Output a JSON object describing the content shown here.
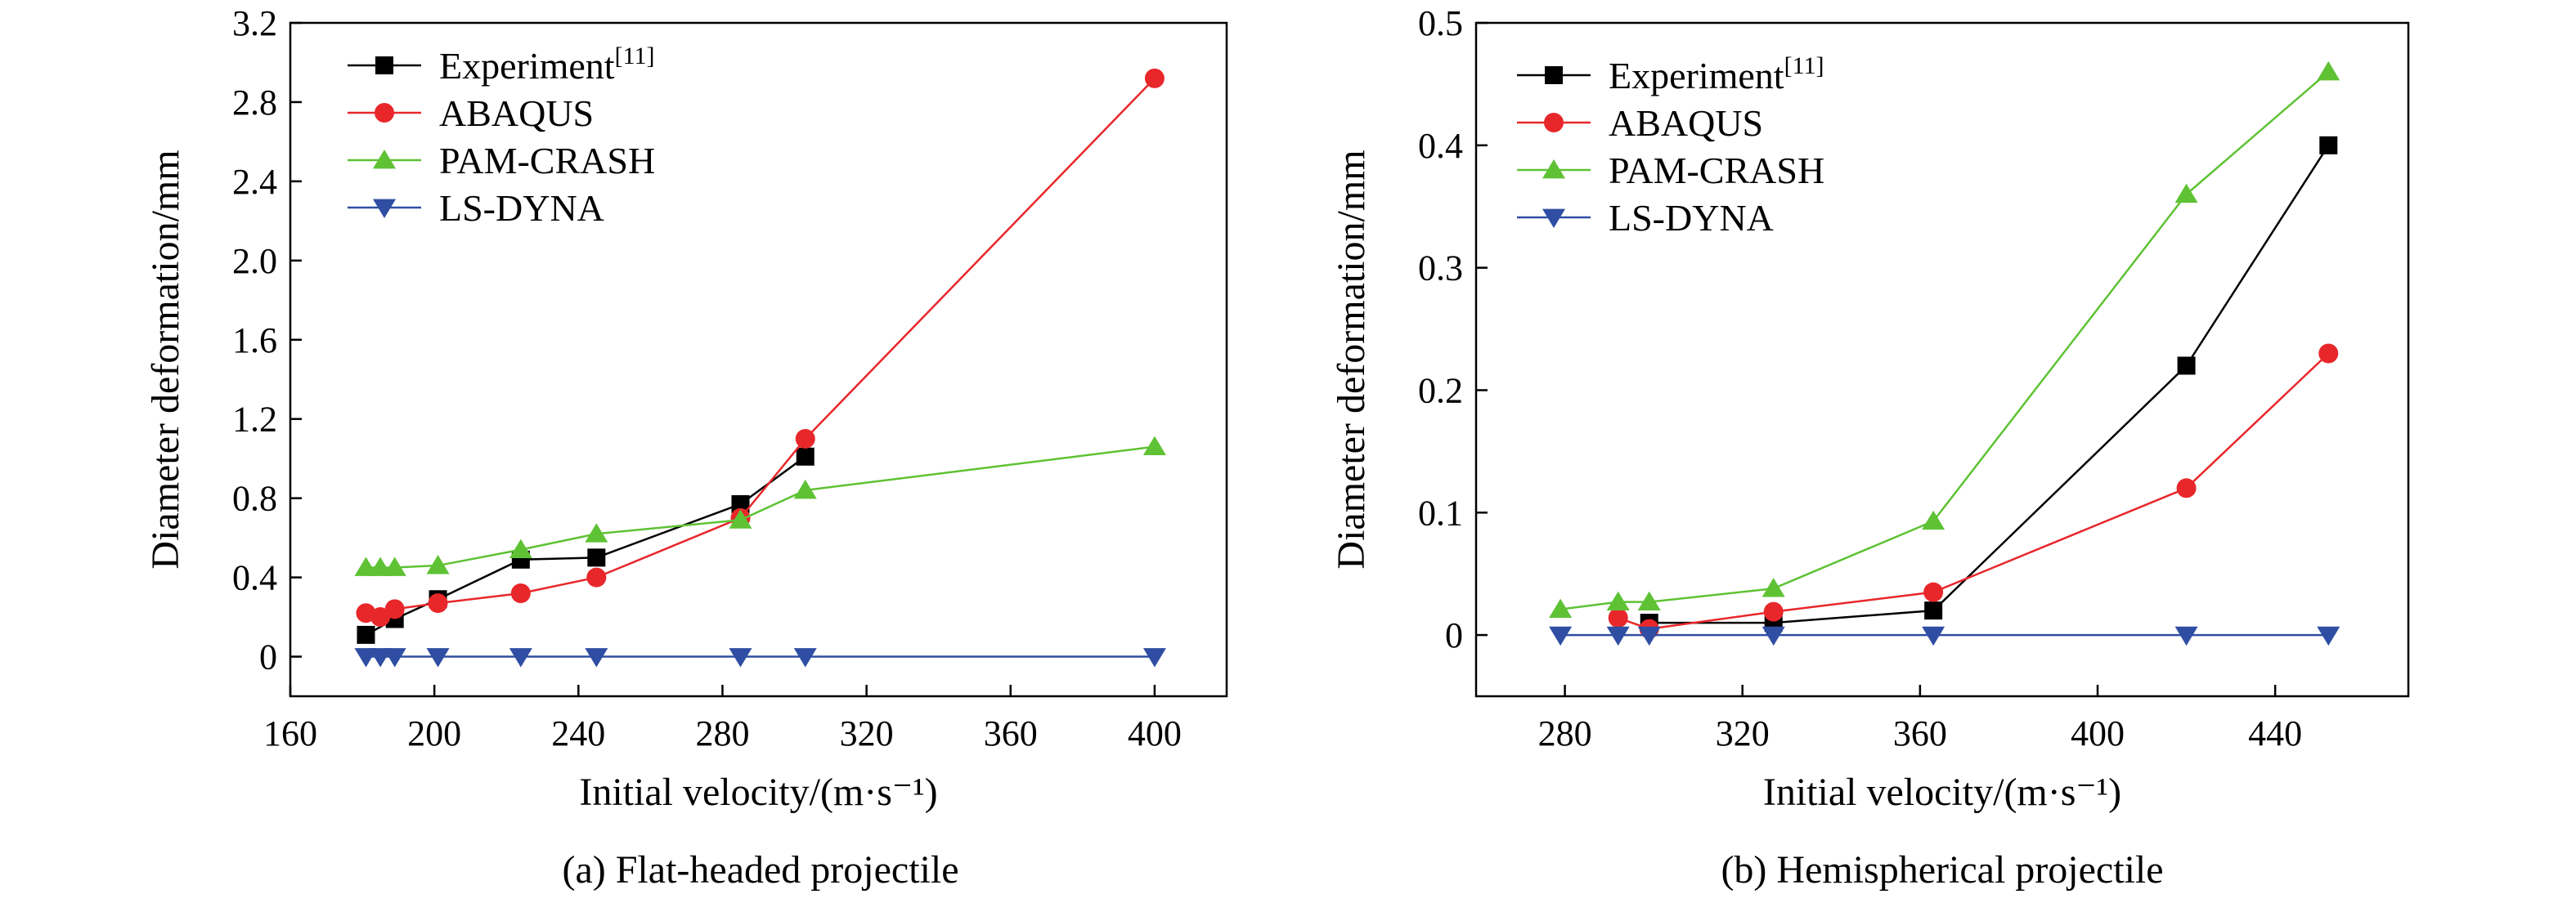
{
  "chart_data": [
    {
      "type": "line",
      "caption": "(a) Flat-headed projectile",
      "xlabel": "Initial velocity/(m·s⁻¹)",
      "ylabel": "Diameter deformation/mm",
      "xlim": [
        160,
        420
      ],
      "ylim": [
        -0.2,
        3.2
      ],
      "xticks": [
        160,
        200,
        240,
        280,
        320,
        360,
        400
      ],
      "yticks": [
        0,
        0.4,
        0.8,
        1.2,
        1.6,
        2.0,
        2.4,
        2.8,
        3.2
      ],
      "xtick_labels": [
        "160",
        "200",
        "240",
        "280",
        "320",
        "360",
        "400"
      ],
      "ytick_labels": [
        "0",
        "0.4",
        "0.8",
        "1.2",
        "1.6",
        "2.0",
        "2.4",
        "2.8",
        "3.2"
      ],
      "grid": false,
      "legend_position": "top-left",
      "series": [
        {
          "name": "Experiment",
          "name_sup": "[11]",
          "color": "#000000",
          "marker": "square",
          "x": [
            181,
            189,
            201,
            224,
            245,
            285,
            303
          ],
          "y": [
            0.11,
            0.19,
            0.29,
            0.49,
            0.5,
            0.77,
            1.01
          ]
        },
        {
          "name": "ABAQUS",
          "color": "#e8272b",
          "marker": "circle",
          "x": [
            181,
            185,
            189,
            201,
            224,
            245,
            285,
            303,
            400
          ],
          "y": [
            0.22,
            0.2,
            0.24,
            0.27,
            0.32,
            0.4,
            0.7,
            1.1,
            2.92
          ]
        },
        {
          "name": "PAM-CRASH",
          "color": "#5ec234",
          "marker": "triangle-up",
          "x": [
            181,
            185,
            189,
            201,
            224,
            245,
            285,
            303,
            400
          ],
          "y": [
            0.45,
            0.45,
            0.45,
            0.46,
            0.54,
            0.62,
            0.69,
            0.84,
            1.06
          ]
        },
        {
          "name": "LS-DYNA",
          "color": "#2f4ea3",
          "marker": "triangle-down",
          "x": [
            181,
            185,
            189,
            201,
            224,
            245,
            285,
            303,
            400
          ],
          "y": [
            0,
            0,
            0,
            0,
            0,
            0,
            0,
            0,
            0
          ]
        }
      ]
    },
    {
      "type": "line",
      "caption": "(b) Hemispherical projectile",
      "xlabel": "Initial velocity/(m·s⁻¹)",
      "ylabel": "Diameter deformation/mm",
      "xlim": [
        260,
        470
      ],
      "ylim": [
        -0.05,
        0.5
      ],
      "xticks": [
        280,
        320,
        360,
        400,
        440
      ],
      "yticks": [
        0,
        0.1,
        0.2,
        0.3,
        0.4,
        0.5
      ],
      "xtick_labels": [
        "280",
        "320",
        "360",
        "400",
        "440"
      ],
      "ytick_labels": [
        "0",
        "0.1",
        "0.2",
        "0.3",
        "0.4",
        "0.5"
      ],
      "grid": false,
      "legend_position": "top-left",
      "series": [
        {
          "name": "Experiment",
          "name_sup": "[11]",
          "color": "#000000",
          "marker": "square",
          "x": [
            299,
            327,
            363,
            420,
            452
          ],
          "y": [
            0.01,
            0.01,
            0.02,
            0.22,
            0.4
          ]
        },
        {
          "name": "ABAQUS",
          "color": "#e8272b",
          "marker": "circle",
          "x": [
            292,
            299,
            327,
            363,
            420,
            452
          ],
          "y": [
            0.014,
            0.005,
            0.019,
            0.035,
            0.12,
            0.23
          ]
        },
        {
          "name": "PAM-CRASH",
          "color": "#5ec234",
          "marker": "triangle-up",
          "x": [
            279,
            292,
            299,
            327,
            363,
            420,
            452
          ],
          "y": [
            0.021,
            0.027,
            0.027,
            0.038,
            0.093,
            0.36,
            0.46
          ]
        },
        {
          "name": "LS-DYNA",
          "color": "#2f4ea3",
          "marker": "triangle-down",
          "x": [
            279,
            292,
            299,
            327,
            363,
            420,
            452
          ],
          "y": [
            0,
            0,
            0,
            0,
            0,
            0,
            0
          ]
        }
      ]
    }
  ]
}
